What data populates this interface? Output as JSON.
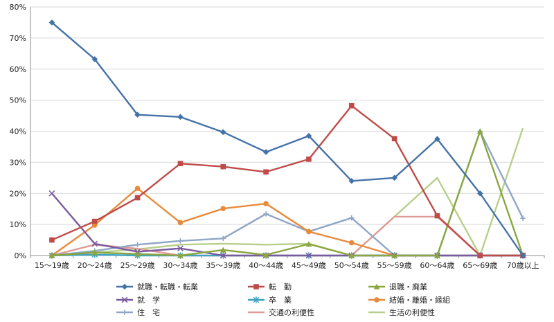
{
  "chart_data": {
    "type": "line",
    "title": "",
    "xlabel": "",
    "ylabel": "",
    "ylim": [
      0,
      80
    ],
    "yticks": [
      0,
      10,
      20,
      30,
      40,
      50,
      60,
      70,
      80
    ],
    "ytick_labels": [
      "0%",
      "10%",
      "20%",
      "30%",
      "40%",
      "50%",
      "60%",
      "70%",
      "80%"
    ],
    "grid": true,
    "legend_position": "bottom",
    "categories": [
      "15～19歳",
      "20～24歳",
      "25～29歳",
      "30～34歳",
      "35～39歳",
      "40～44歳",
      "45～49歳",
      "50～54歳",
      "55～59歳",
      "60～64歳",
      "65～69歳",
      "70歳以上"
    ],
    "series": [
      {
        "name": "就職・転職・転業",
        "color": "#4472a8",
        "marker": "diamond",
        "values": [
          75.0,
          63.2,
          45.3,
          44.6,
          39.7,
          33.3,
          38.5,
          24.0,
          25.0,
          37.5,
          20.0,
          0.0
        ]
      },
      {
        "name": "転　勤",
        "color": "#be4b48",
        "marker": "square",
        "values": [
          5.0,
          11.0,
          18.6,
          29.6,
          28.6,
          26.9,
          31.0,
          48.2,
          37.6,
          12.8,
          0.0,
          0.0
        ]
      },
      {
        "name": "退職・廃業",
        "color": "#8aa640",
        "marker": "triangle",
        "values": [
          0.0,
          1.0,
          0.5,
          0.0,
          1.8,
          0.2,
          3.7,
          0.0,
          0.0,
          0.0,
          40.0,
          0.0
        ]
      },
      {
        "name": "就　学",
        "color": "#7a5a9e",
        "marker": "x",
        "values": [
          20.0,
          3.8,
          1.2,
          2.3,
          0.0,
          0.0,
          0.0,
          0.0,
          0.0,
          0.0,
          0.0,
          0.0
        ]
      },
      {
        "name": "卒　業",
        "color": "#3da3c2",
        "marker": "star",
        "values": [
          0.0,
          0.3,
          0.0,
          0.0,
          0.0,
          0.0,
          0.0,
          0.0,
          0.0,
          0.0,
          0.0,
          0.0
        ]
      },
      {
        "name": "結婚・離婚・縁組",
        "color": "#e88a3a",
        "marker": "circle",
        "values": [
          0.0,
          9.8,
          21.6,
          10.6,
          15.1,
          16.7,
          7.7,
          4.1,
          0.0,
          0.0,
          0.0,
          0.0
        ]
      },
      {
        "name": "住　宅",
        "color": "#8fa6c6",
        "marker": "plus",
        "values": [
          0.0,
          1.5,
          3.5,
          4.7,
          5.5,
          13.4,
          7.7,
          12.1,
          0.0,
          0.0,
          40.0,
          12.0
        ]
      },
      {
        "name": "交通の利便性",
        "color": "#e09a98",
        "marker": "none",
        "values": [
          0.0,
          3.5,
          2.2,
          0.0,
          0.0,
          0.0,
          0.0,
          0.0,
          12.5,
          12.5,
          0.0,
          0.0
        ]
      },
      {
        "name": "生活の利便性",
        "color": "#b7cf8a",
        "marker": "none",
        "values": [
          0.0,
          1.0,
          2.0,
          3.5,
          3.8,
          3.5,
          3.8,
          0.0,
          12.5,
          25.0,
          0.0,
          41.0
        ]
      }
    ]
  }
}
